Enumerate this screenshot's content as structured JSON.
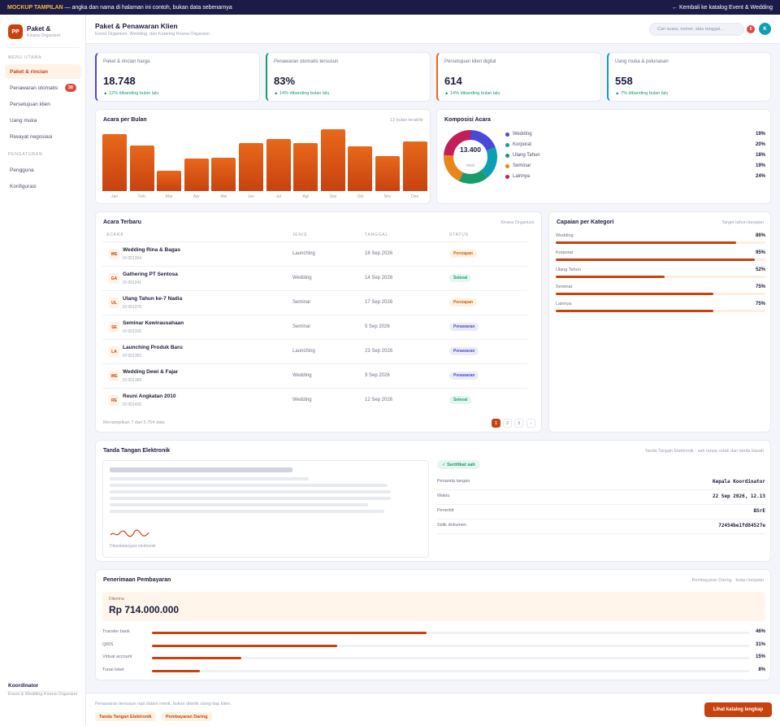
{
  "banner": {
    "tag": "MOCKUP TAMPILAN",
    "text": " — angka dan nama di halaman ini contoh, bukan data sebenarnya",
    "back_link": "← Kembali ke katalog Event & Wedding"
  },
  "sidebar": {
    "logo": "PP",
    "brand": "Paket &",
    "brand_sub": "Kirana Organizer",
    "section_main": "MENU UTAMA",
    "items": [
      {
        "label": "Paket & rincian"
      },
      {
        "label": "Penawaran otomatis",
        "badge": "38"
      },
      {
        "label": "Persetujuan klien"
      },
      {
        "label": "Uang muka"
      },
      {
        "label": "Riwayat negosiasi"
      }
    ],
    "section_settings": "PENGATURAN",
    "settings_items": [
      {
        "label": "Pengguna"
      },
      {
        "label": "Konfigurasi"
      }
    ],
    "footer_title": "Koordinator",
    "footer_sub": "Event & Wedding Kirana Organizer"
  },
  "header": {
    "title": "Paket & Penawaran Klien",
    "subtitle": "Event Organizer, Wedding, dan Katering Kirana Organizer",
    "search_placeholder": "Cari acara, nomor, atau tanggal...",
    "notif": "5",
    "avatar": "K"
  },
  "kpis": [
    {
      "label": "Paket & rincian harga",
      "value": "18.748",
      "delta": "▲ 12% dibanding bulan lalu",
      "accent": "#4a4ad8"
    },
    {
      "label": "Penawaran otomatis tersusun",
      "value": "83%",
      "delta": "▲ 14% dibanding bulan lalu",
      "accent": "#1a9b6c"
    },
    {
      "label": "Persetujuan klien digital",
      "value": "614",
      "delta": "▲ 14% dibanding bulan lalu",
      "accent": "#e8681b"
    },
    {
      "label": "Uang muka & pelunasan",
      "value": "558",
      "delta": "▲ 7% dibanding bulan lalu",
      "accent": "#0e9eb3"
    }
  ],
  "monthly": {
    "title": "Acara per Bulan",
    "meta": "12 bulan terakhir",
    "chart_data": {
      "type": "bar",
      "categories": [
        "Jan",
        "Feb",
        "Mar",
        "Apr",
        "Mei",
        "Jun",
        "Jul",
        "Agt",
        "Sep",
        "Okt",
        "Nov",
        "Des"
      ],
      "values": [
        92,
        74,
        33,
        52,
        54,
        77,
        84,
        77,
        100,
        72,
        57,
        80
      ]
    }
  },
  "composition": {
    "title": "Komposisi Acara",
    "total": "13.400",
    "total_label": "total",
    "chart_data": {
      "type": "pie",
      "categories": [
        "Wedding",
        "Korporat",
        "Ulang Tahun",
        "Seminar",
        "Lainnya"
      ],
      "values": [
        19,
        20,
        18,
        19,
        24
      ],
      "labels": [
        "19%",
        "20%",
        "18%",
        "19%",
        "24%"
      ],
      "colors": [
        "#4a4ad8",
        "#0e9eb3",
        "#1a9b6c",
        "#e8861b",
        "#c21e58"
      ]
    }
  },
  "recent": {
    "title": "Acara Terbaru",
    "meta": "Kirana Organizer",
    "headers": [
      "ACARA",
      "JENIS",
      "TANGGAL",
      "STATUS"
    ],
    "rows": [
      {
        "ini": "WE",
        "name": "Wedding Rina & Bagas",
        "id": "ID 001204",
        "type": "Launching",
        "date": "18 Sep 2026",
        "status": "Persiapan",
        "st": "persiapan"
      },
      {
        "ini": "GA",
        "name": "Gathering PT Sentosa",
        "id": "ID 001241",
        "type": "Wedding",
        "date": "14 Sep 2026",
        "status": "Selesai",
        "st": "selesai"
      },
      {
        "ini": "UL",
        "name": "Ulang Tahun ke-7 Nadia",
        "id": "ID 001278",
        "type": "Seminar",
        "date": "17 Sep 2026",
        "status": "Persiapan",
        "st": "persiapan"
      },
      {
        "ini": "SE",
        "name": "Seminar Kewirausahaan",
        "id": "ID 001315",
        "type": "Seminar",
        "date": "5 Sep 2026",
        "status": "Penawaran",
        "st": "penawaran"
      },
      {
        "ini": "LA",
        "name": "Launching Produk Baru",
        "id": "ID 001352",
        "type": "Launching",
        "date": "23 Sep 2026",
        "status": "Penawaran",
        "st": "penawaran"
      },
      {
        "ini": "WE",
        "name": "Wedding Dewi & Fajar",
        "id": "ID 001389",
        "type": "Wedding",
        "date": "9 Sep 2026",
        "status": "Penawaran",
        "st": "penawaran"
      },
      {
        "ini": "RE",
        "name": "Reuni Angkatan 2010",
        "id": "ID 001426",
        "type": "Wedding",
        "date": "12 Sep 2026",
        "status": "Selesai",
        "st": "selesai"
      }
    ],
    "footer": "Menampilkan 7 dari 5.754 data",
    "pages": [
      "1",
      "2",
      "3",
      "›"
    ]
  },
  "category": {
    "title": "Capaian per Kategori",
    "meta": "Target tahun berjalan",
    "chart_data": {
      "type": "bar",
      "categories": [
        "Wedding",
        "Korporat",
        "Ulang Tahun",
        "Seminar",
        "Lainnya"
      ],
      "values": [
        86,
        95,
        52,
        75,
        75
      ],
      "labels": [
        "86%",
        "95%",
        "52%",
        "75%",
        "75%"
      ]
    }
  },
  "signature": {
    "title": "Tanda Tangan Elektronik",
    "meta": "Tanda Tangan Elektronik · sah tanpa cetak dan tanda basah",
    "caption": "Ditandatangani elektronik",
    "cert": "✓ Sertifikat sah",
    "fields": [
      {
        "label": "Penanda tangan",
        "value": "Kepala Koordinator"
      },
      {
        "label": "Waktu",
        "value": "22 Sep 2026, 12.13"
      },
      {
        "label": "Penerbit",
        "value": "BSrE"
      },
      {
        "label": "Sidik dokumen",
        "value": "72454be1fd84527e"
      }
    ]
  },
  "payment": {
    "title": "Penerimaan Pembayaran",
    "meta": "Pembayaran Daring · bulan berjalan",
    "received_label": "Diterima",
    "received_value": "Rp 714.000.000",
    "chart_data": {
      "type": "bar",
      "categories": [
        "Transfer bank",
        "QRIS",
        "Virtual account",
        "Tunai loket"
      ],
      "values": [
        46,
        31,
        15,
        8
      ],
      "labels": [
        "46%",
        "31%",
        "15%",
        "8%"
      ]
    }
  },
  "footer": {
    "note": "Penawaran tersusun rapi dalam menit, bukan diketik ulang tiap klien.",
    "tags": [
      "Tanda Tangan Elektronik",
      "Pembayaran Daring"
    ],
    "cta": "Lihat katalog lengkap"
  }
}
